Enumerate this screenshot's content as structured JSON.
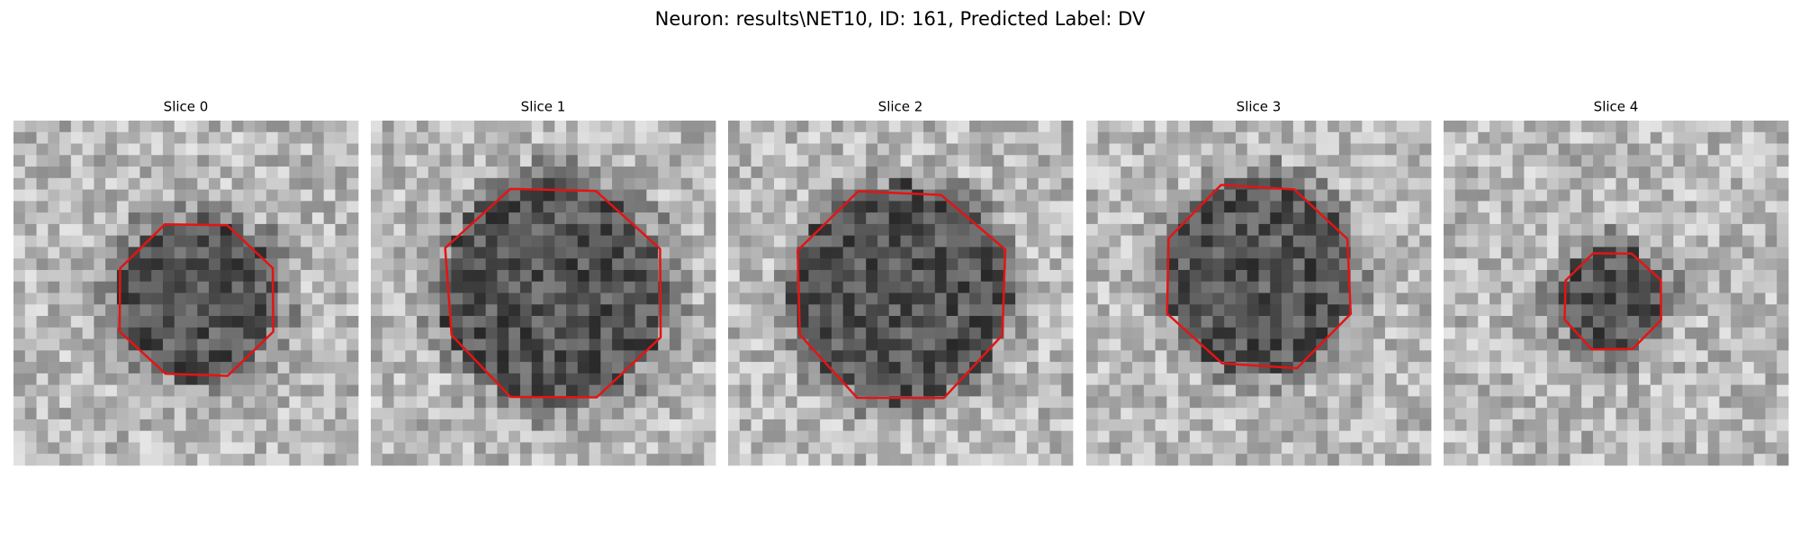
{
  "title": "Neuron: results\\NET10, ID: 161, Predicted Label: DV",
  "panels": [
    {
      "title": "Slice 0"
    },
    {
      "title": "Slice 1"
    },
    {
      "title": "Slice 2"
    },
    {
      "title": "Slice 3"
    },
    {
      "title": "Slice 4"
    }
  ]
}
